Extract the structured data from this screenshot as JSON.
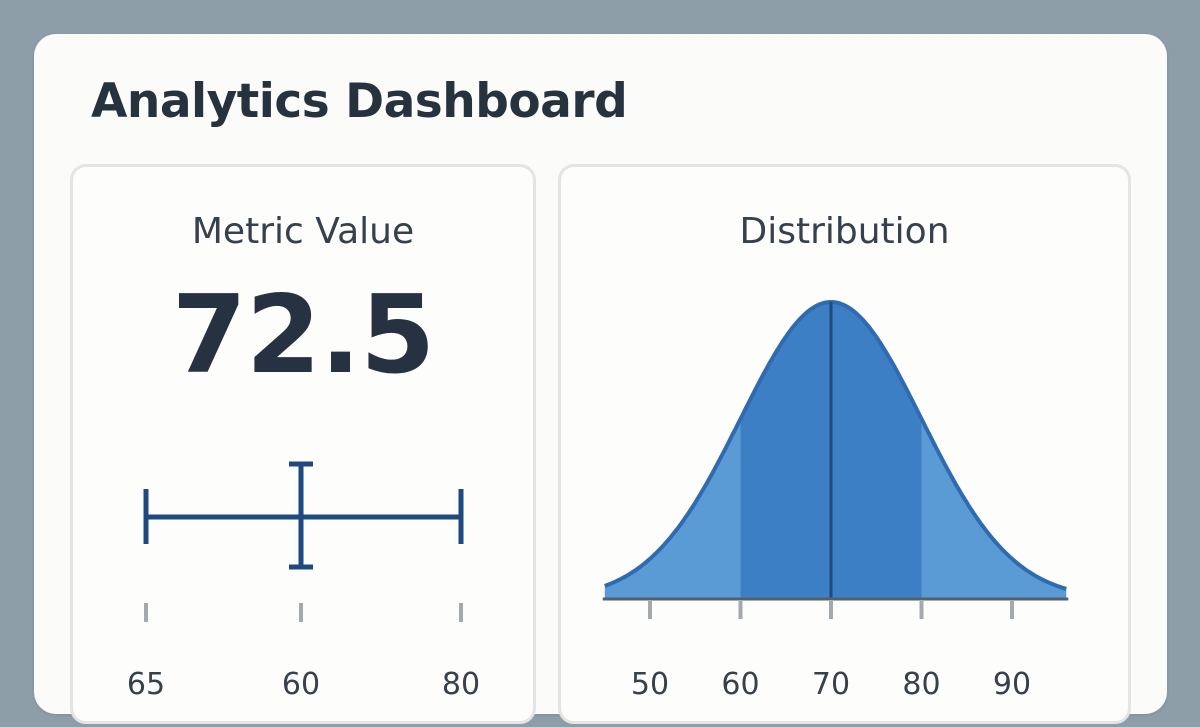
{
  "header": {
    "title": "Analytics Dashboard"
  },
  "metric_card": {
    "title": "Metric Value",
    "value": "72.5",
    "ticks": [
      {
        "label": "65"
      },
      {
        "label": "60"
      },
      {
        "label": "80"
      }
    ]
  },
  "distribution_card": {
    "title": "Distribution",
    "chart_data": {
      "type": "area",
      "title": "Distribution",
      "xlabel": "",
      "ylabel": "",
      "x_ticks": [
        50,
        60,
        70,
        80,
        90
      ],
      "xlim": [
        45,
        96
      ],
      "mean": 70,
      "std_dev": 10,
      "highlight_range": [
        60,
        80
      ],
      "fill_color": "#5b9bd5",
      "highlight_color": "#3d7fc4",
      "line_color": "#2e6bb0",
      "grid": false
    }
  },
  "colors": {
    "background": "#8e9ea9",
    "panel": "#fbfbfa",
    "text": "#27323f",
    "accent": "#1f4a80"
  }
}
